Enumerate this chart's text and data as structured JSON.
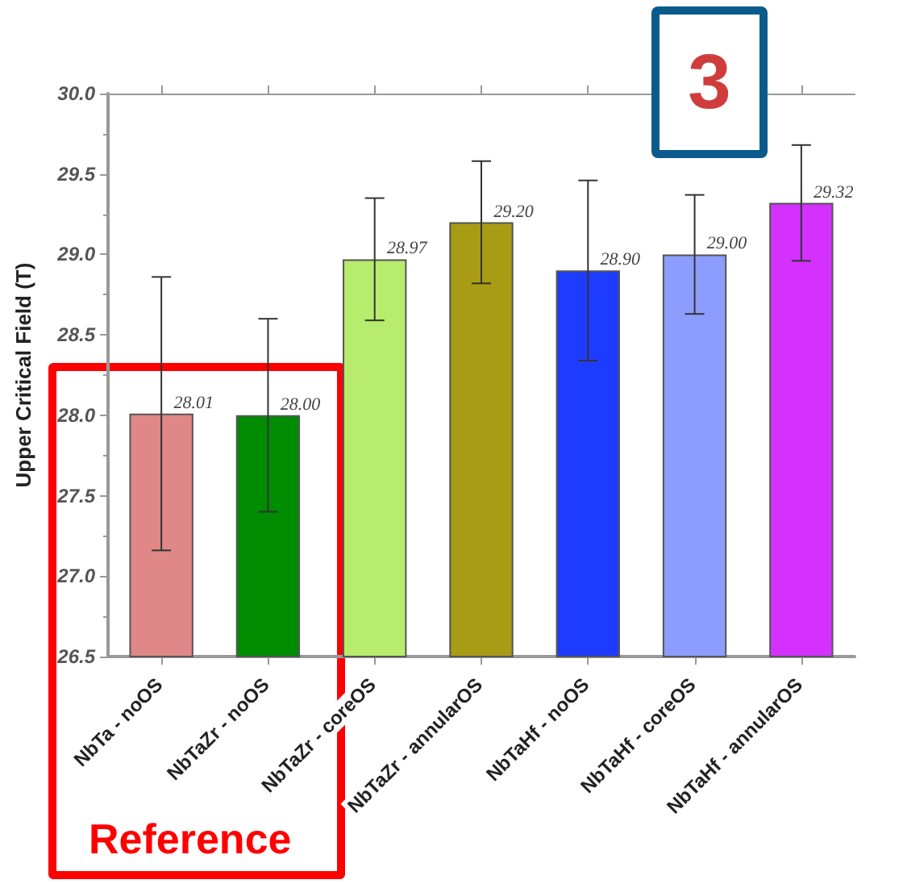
{
  "chart_data": {
    "type": "bar",
    "ylabel": "Upper Critical Field (T)",
    "categories": [
      "NbTa - noOS",
      "NbTaZr - noOS",
      "NbTaZr - coreOS",
      "NbTaZr - annularOS",
      "NbTaHf - noOS",
      "NbTaHf - coreOS",
      "NbTaHf - annularOS"
    ],
    "values": [
      28.01,
      28.0,
      28.97,
      29.2,
      28.9,
      29.0,
      29.32
    ],
    "colors": [
      "#e08888",
      "#008c00",
      "#b8ec6c",
      "#a89c14",
      "#1e3cff",
      "#8c9cff",
      "#d431ff"
    ],
    "errors": [
      0.85,
      0.6,
      0.38,
      0.38,
      0.56,
      0.37,
      0.36
    ],
    "value_labels": [
      "28.01",
      "28.00",
      "28.97",
      "29.20",
      "28.90",
      "29.00",
      "29.32"
    ],
    "ylim": [
      26.5,
      30.0
    ],
    "yticks": [
      {
        "value": 26.5,
        "label": "26.5"
      },
      {
        "value": 27,
        "label": "27.0"
      },
      {
        "value": 27.5,
        "label": "27.5"
      },
      {
        "value": 28,
        "label": "28.0"
      },
      {
        "value": 28.5,
        "label": "28.5"
      },
      {
        "value": 29,
        "label": "29.0"
      },
      {
        "value": 29.5,
        "label": "29.5"
      },
      {
        "value": 30,
        "label": "30.0"
      }
    ],
    "grid": false,
    "annotations": [
      "3",
      "Reference"
    ]
  }
}
